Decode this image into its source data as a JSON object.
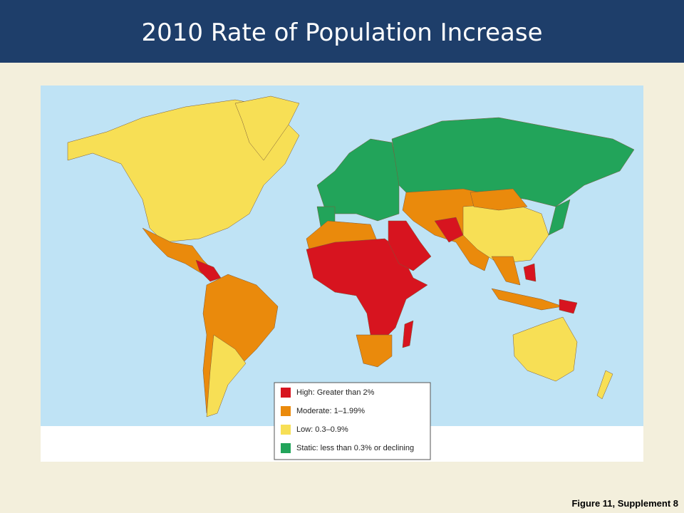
{
  "header": {
    "title": "2010 Rate of Population Increase"
  },
  "legend": {
    "items": [
      {
        "label": "High: Greater than 2%",
        "color": "#d7141f"
      },
      {
        "label": "Moderate: 1–1.99%",
        "color": "#ea8a0c"
      },
      {
        "label": "Low: 0.3–0.9%",
        "color": "#f7df55"
      },
      {
        "label": "Static: less than 0.3% or declining",
        "color": "#22a45a"
      }
    ]
  },
  "caption": "Figure 11, Supplement 8"
}
